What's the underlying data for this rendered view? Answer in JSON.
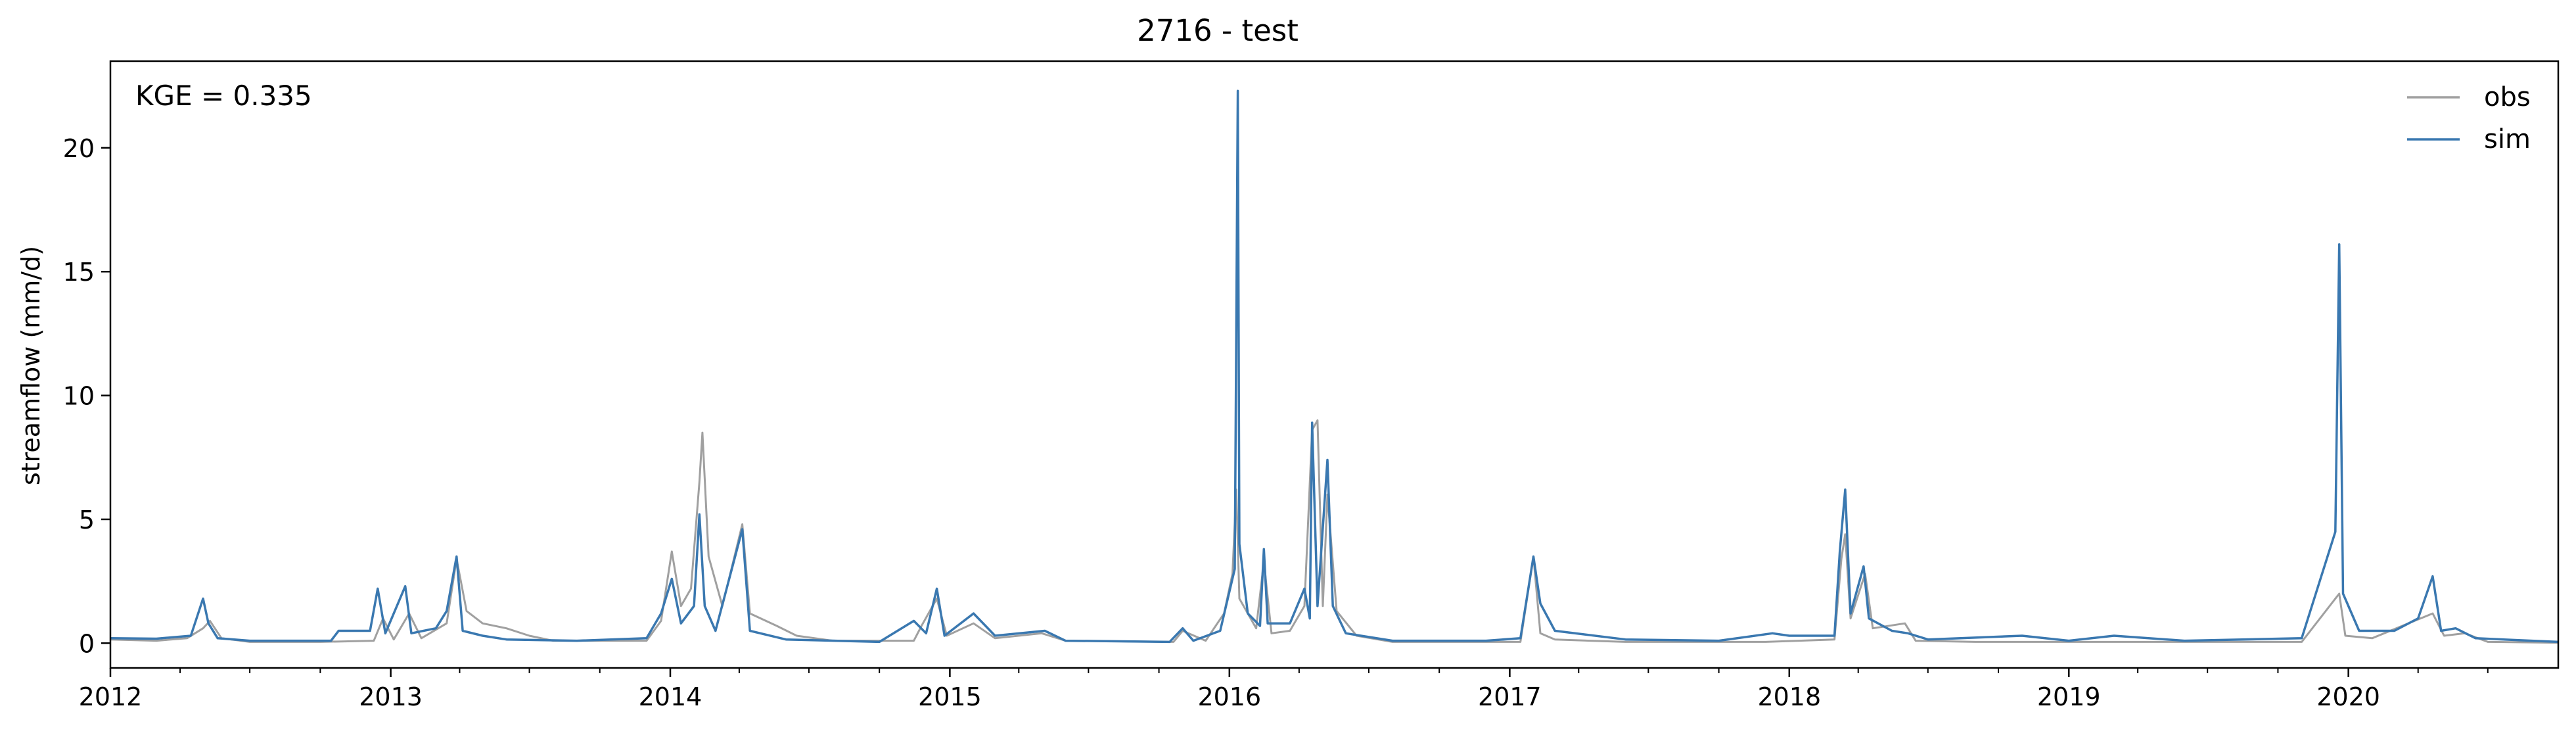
{
  "chart_data": {
    "type": "line",
    "title": "2716 - test",
    "xlabel": "",
    "ylabel": "streamflow (mm/d)",
    "annotation": "KGE = 0.335",
    "xlim": [
      "2012-01-01",
      "2020-10-01"
    ],
    "ylim": [
      -1.0,
      23.5
    ],
    "x_ticks": [
      "2012-01-01",
      "2013-01-01",
      "2014-01-01",
      "2015-01-01",
      "2016-01-01",
      "2017-01-01",
      "2018-01-01",
      "2019-01-01",
      "2020-01-01"
    ],
    "x_tick_labels": [
      "2012",
      "2013",
      "2014",
      "2015",
      "2016",
      "2017",
      "2018",
      "2019",
      "2020"
    ],
    "y_ticks": [
      0,
      5,
      10,
      15,
      20
    ],
    "y_tick_labels": [
      "0",
      "5",
      "10",
      "15",
      "20"
    ],
    "grid": false,
    "legend_position": "top-right",
    "series": [
      {
        "name": "obs",
        "color": "#a0a0a0",
        "points": [
          [
            "2012-01-01",
            0.15
          ],
          [
            "2012-03-01",
            0.1
          ],
          [
            "2012-04-10",
            0.2
          ],
          [
            "2012-05-01",
            0.6
          ],
          [
            "2012-05-10",
            0.9
          ],
          [
            "2012-05-25",
            0.2
          ],
          [
            "2012-07-01",
            0.05
          ],
          [
            "2012-10-01",
            0.05
          ],
          [
            "2012-12-10",
            0.1
          ],
          [
            "2012-12-22",
            1.0
          ],
          [
            "2013-01-05",
            0.15
          ],
          [
            "2013-01-25",
            1.2
          ],
          [
            "2013-02-10",
            0.2
          ],
          [
            "2013-03-15",
            0.8
          ],
          [
            "2013-03-28",
            3.4
          ],
          [
            "2013-04-10",
            1.3
          ],
          [
            "2013-05-01",
            0.8
          ],
          [
            "2013-06-01",
            0.6
          ],
          [
            "2013-07-01",
            0.3
          ],
          [
            "2013-08-01",
            0.1
          ],
          [
            "2013-12-01",
            0.1
          ],
          [
            "2013-12-20",
            0.9
          ],
          [
            "2014-01-03",
            3.7
          ],
          [
            "2014-01-15",
            1.5
          ],
          [
            "2014-01-28",
            2.2
          ],
          [
            "2014-02-08",
            6.5
          ],
          [
            "2014-02-12",
            8.5
          ],
          [
            "2014-02-20",
            3.5
          ],
          [
            "2014-03-10",
            1.5
          ],
          [
            "2014-04-05",
            4.8
          ],
          [
            "2014-04-15",
            1.2
          ],
          [
            "2014-05-20",
            0.7
          ],
          [
            "2014-06-15",
            0.3
          ],
          [
            "2014-08-01",
            0.1
          ],
          [
            "2014-11-15",
            0.1
          ],
          [
            "2014-11-25",
            0.7
          ],
          [
            "2014-12-15",
            1.8
          ],
          [
            "2014-12-28",
            0.3
          ],
          [
            "2015-02-01",
            0.8
          ],
          [
            "2015-03-01",
            0.2
          ],
          [
            "2015-05-01",
            0.4
          ],
          [
            "2015-06-01",
            0.1
          ],
          [
            "2015-10-20",
            0.05
          ],
          [
            "2015-11-01",
            0.5
          ],
          [
            "2015-12-01",
            0.1
          ],
          [
            "2015-12-25",
            1.2
          ],
          [
            "2016-01-05",
            2.8
          ],
          [
            "2016-01-10",
            6.2
          ],
          [
            "2016-01-14",
            1.8
          ],
          [
            "2016-02-05",
            0.6
          ],
          [
            "2016-02-15",
            3.3
          ],
          [
            "2016-02-25",
            0.4
          ],
          [
            "2016-03-20",
            0.5
          ],
          [
            "2016-04-08",
            1.5
          ],
          [
            "2016-04-18",
            8.6
          ],
          [
            "2016-04-25",
            9.0
          ],
          [
            "2016-05-02",
            1.5
          ],
          [
            "2016-05-08",
            6.0
          ],
          [
            "2016-05-20",
            1.3
          ],
          [
            "2016-06-15",
            0.3
          ],
          [
            "2016-08-01",
            0.05
          ],
          [
            "2017-01-15",
            0.05
          ],
          [
            "2017-02-01",
            3.5
          ],
          [
            "2017-02-10",
            0.4
          ],
          [
            "2017-03-01",
            0.15
          ],
          [
            "2017-06-01",
            0.05
          ],
          [
            "2017-12-01",
            0.05
          ],
          [
            "2018-03-01",
            0.15
          ],
          [
            "2018-03-10",
            3.4
          ],
          [
            "2018-03-15",
            4.4
          ],
          [
            "2018-03-22",
            1.0
          ],
          [
            "2018-04-10",
            2.8
          ],
          [
            "2018-04-20",
            0.6
          ],
          [
            "2018-06-01",
            0.8
          ],
          [
            "2018-06-15",
            0.1
          ],
          [
            "2018-09-01",
            0.05
          ],
          [
            "2019-11-01",
            0.05
          ],
          [
            "2019-12-20",
            2.0
          ],
          [
            "2019-12-28",
            0.3
          ],
          [
            "2020-02-01",
            0.2
          ],
          [
            "2020-04-20",
            1.2
          ],
          [
            "2020-05-05",
            0.3
          ],
          [
            "2020-06-01",
            0.4
          ],
          [
            "2020-07-01",
            0.05
          ],
          [
            "2020-10-01",
            0.02
          ]
        ]
      },
      {
        "name": "sim",
        "color": "#3a78b0",
        "points": [
          [
            "2012-01-01",
            0.2
          ],
          [
            "2012-03-01",
            0.18
          ],
          [
            "2012-04-15",
            0.3
          ],
          [
            "2012-05-01",
            1.8
          ],
          [
            "2012-05-08",
            0.8
          ],
          [
            "2012-05-20",
            0.2
          ],
          [
            "2012-07-01",
            0.1
          ],
          [
            "2012-10-15",
            0.1
          ],
          [
            "2012-10-25",
            0.5
          ],
          [
            "2012-11-15",
            0.5
          ],
          [
            "2012-12-05",
            0.5
          ],
          [
            "2012-12-15",
            2.2
          ],
          [
            "2012-12-25",
            0.4
          ],
          [
            "2013-01-20",
            2.3
          ],
          [
            "2013-01-28",
            0.4
          ],
          [
            "2013-03-01",
            0.6
          ],
          [
            "2013-03-15",
            1.3
          ],
          [
            "2013-03-28",
            3.5
          ],
          [
            "2013-04-05",
            0.5
          ],
          [
            "2013-05-01",
            0.3
          ],
          [
            "2013-06-01",
            0.15
          ],
          [
            "2013-09-01",
            0.1
          ],
          [
            "2013-12-01",
            0.2
          ],
          [
            "2013-12-20",
            1.2
          ],
          [
            "2014-01-03",
            2.6
          ],
          [
            "2014-01-15",
            0.8
          ],
          [
            "2014-02-01",
            1.5
          ],
          [
            "2014-02-08",
            5.2
          ],
          [
            "2014-02-15",
            1.5
          ],
          [
            "2014-03-01",
            0.5
          ],
          [
            "2014-04-05",
            4.6
          ],
          [
            "2014-04-15",
            0.5
          ],
          [
            "2014-06-01",
            0.15
          ],
          [
            "2014-10-01",
            0.05
          ],
          [
            "2014-11-15",
            0.9
          ],
          [
            "2014-12-01",
            0.4
          ],
          [
            "2014-12-15",
            2.2
          ],
          [
            "2014-12-25",
            0.3
          ],
          [
            "2015-02-01",
            1.2
          ],
          [
            "2015-03-01",
            0.3
          ],
          [
            "2015-05-05",
            0.5
          ],
          [
            "2015-06-01",
            0.1
          ],
          [
            "2015-10-15",
            0.05
          ],
          [
            "2015-11-01",
            0.6
          ],
          [
            "2015-11-15",
            0.1
          ],
          [
            "2015-12-20",
            0.5
          ],
          [
            "2016-01-08",
            3.0
          ],
          [
            "2016-01-12",
            22.3
          ],
          [
            "2016-01-14",
            4.0
          ],
          [
            "2016-01-25",
            1.2
          ],
          [
            "2016-02-10",
            0.7
          ],
          [
            "2016-02-15",
            3.8
          ],
          [
            "2016-02-20",
            0.8
          ],
          [
            "2016-03-20",
            0.8
          ],
          [
            "2016-04-08",
            2.2
          ],
          [
            "2016-04-15",
            1.0
          ],
          [
            "2016-04-18",
            8.9
          ],
          [
            "2016-04-25",
            1.5
          ],
          [
            "2016-05-08",
            7.4
          ],
          [
            "2016-05-15",
            1.5
          ],
          [
            "2016-06-01",
            0.4
          ],
          [
            "2016-08-01",
            0.1
          ],
          [
            "2016-12-01",
            0.1
          ],
          [
            "2017-01-15",
            0.2
          ],
          [
            "2017-02-01",
            3.5
          ],
          [
            "2017-02-10",
            1.6
          ],
          [
            "2017-03-01",
            0.5
          ],
          [
            "2017-06-01",
            0.15
          ],
          [
            "2017-10-01",
            0.1
          ],
          [
            "2017-12-10",
            0.4
          ],
          [
            "2018-01-01",
            0.3
          ],
          [
            "2018-03-01",
            0.3
          ],
          [
            "2018-03-08",
            3.7
          ],
          [
            "2018-03-15",
            6.2
          ],
          [
            "2018-03-22",
            1.2
          ],
          [
            "2018-04-08",
            3.1
          ],
          [
            "2018-04-15",
            1.0
          ],
          [
            "2018-05-15",
            0.5
          ],
          [
            "2018-06-05",
            0.4
          ],
          [
            "2018-07-01",
            0.15
          ],
          [
            "2018-11-01",
            0.3
          ],
          [
            "2019-01-01",
            0.1
          ],
          [
            "2019-03-01",
            0.3
          ],
          [
            "2019-06-01",
            0.1
          ],
          [
            "2019-11-01",
            0.2
          ],
          [
            "2019-12-15",
            4.5
          ],
          [
            "2019-12-20",
            16.1
          ],
          [
            "2019-12-25",
            2.0
          ],
          [
            "2020-01-15",
            0.5
          ],
          [
            "2020-03-01",
            0.5
          ],
          [
            "2020-04-01",
            1.0
          ],
          [
            "2020-04-20",
            2.7
          ],
          [
            "2020-05-01",
            0.5
          ],
          [
            "2020-05-20",
            0.6
          ],
          [
            "2020-06-15",
            0.2
          ],
          [
            "2020-10-01",
            0.05
          ]
        ]
      }
    ]
  }
}
